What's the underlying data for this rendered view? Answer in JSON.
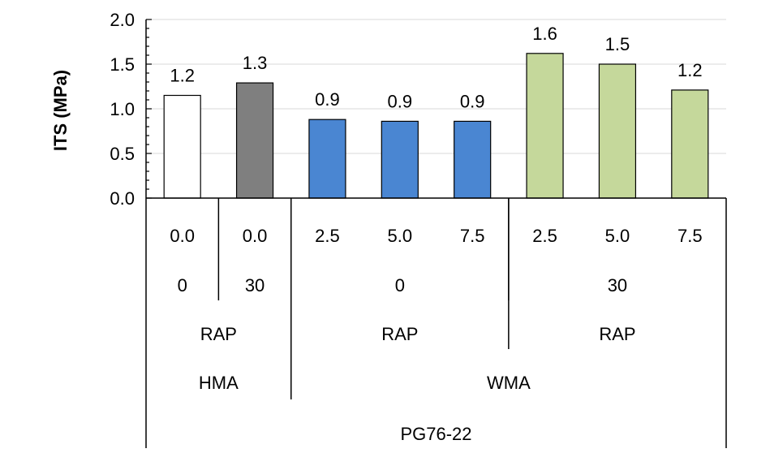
{
  "chart_data": {
    "type": "bar",
    "title": "",
    "ylabel": "ITS (MPa)",
    "xlabel": "",
    "ylim": [
      0,
      2.0
    ],
    "yticks": [
      "0.0",
      "0.5",
      "1.0",
      "1.5",
      "2.0"
    ],
    "gridlines": true,
    "legend": "none",
    "categories": [
      "0.0",
      "0.0",
      "2.5",
      "5.0",
      "7.5",
      "2.5",
      "5.0",
      "7.5"
    ],
    "values": [
      1.15,
      1.29,
      0.88,
      0.86,
      0.86,
      1.62,
      1.5,
      1.21
    ],
    "data_labels": [
      "1.2",
      "1.3",
      "0.9",
      "0.9",
      "0.9",
      "1.6",
      "1.5",
      "1.2"
    ],
    "colors": [
      "#ffffff",
      "#7f7f7f",
      "#4a86d2",
      "#4a86d2",
      "#4a86d2",
      "#c5d89b",
      "#c5d89b",
      "#c5d89b"
    ],
    "bar_stroke": "#000000",
    "grid_color": "#d9d9d9",
    "axis_color": "#000000",
    "group_levels": [
      [
        {
          "label": "0",
          "span": 1
        },
        {
          "label": "30",
          "span": 1
        },
        {
          "label": "0",
          "span": 3
        },
        {
          "label": "30",
          "span": 3
        }
      ],
      [
        {
          "label": "RAP",
          "span": 2
        },
        {
          "label": "RAP",
          "span": 3
        },
        {
          "label": "RAP",
          "span": 3
        }
      ],
      [
        {
          "label": "HMA",
          "span": 2
        },
        {
          "label": "WMA",
          "span": 6
        }
      ],
      [
        {
          "label": "PG76-22",
          "span": 8
        }
      ]
    ]
  }
}
